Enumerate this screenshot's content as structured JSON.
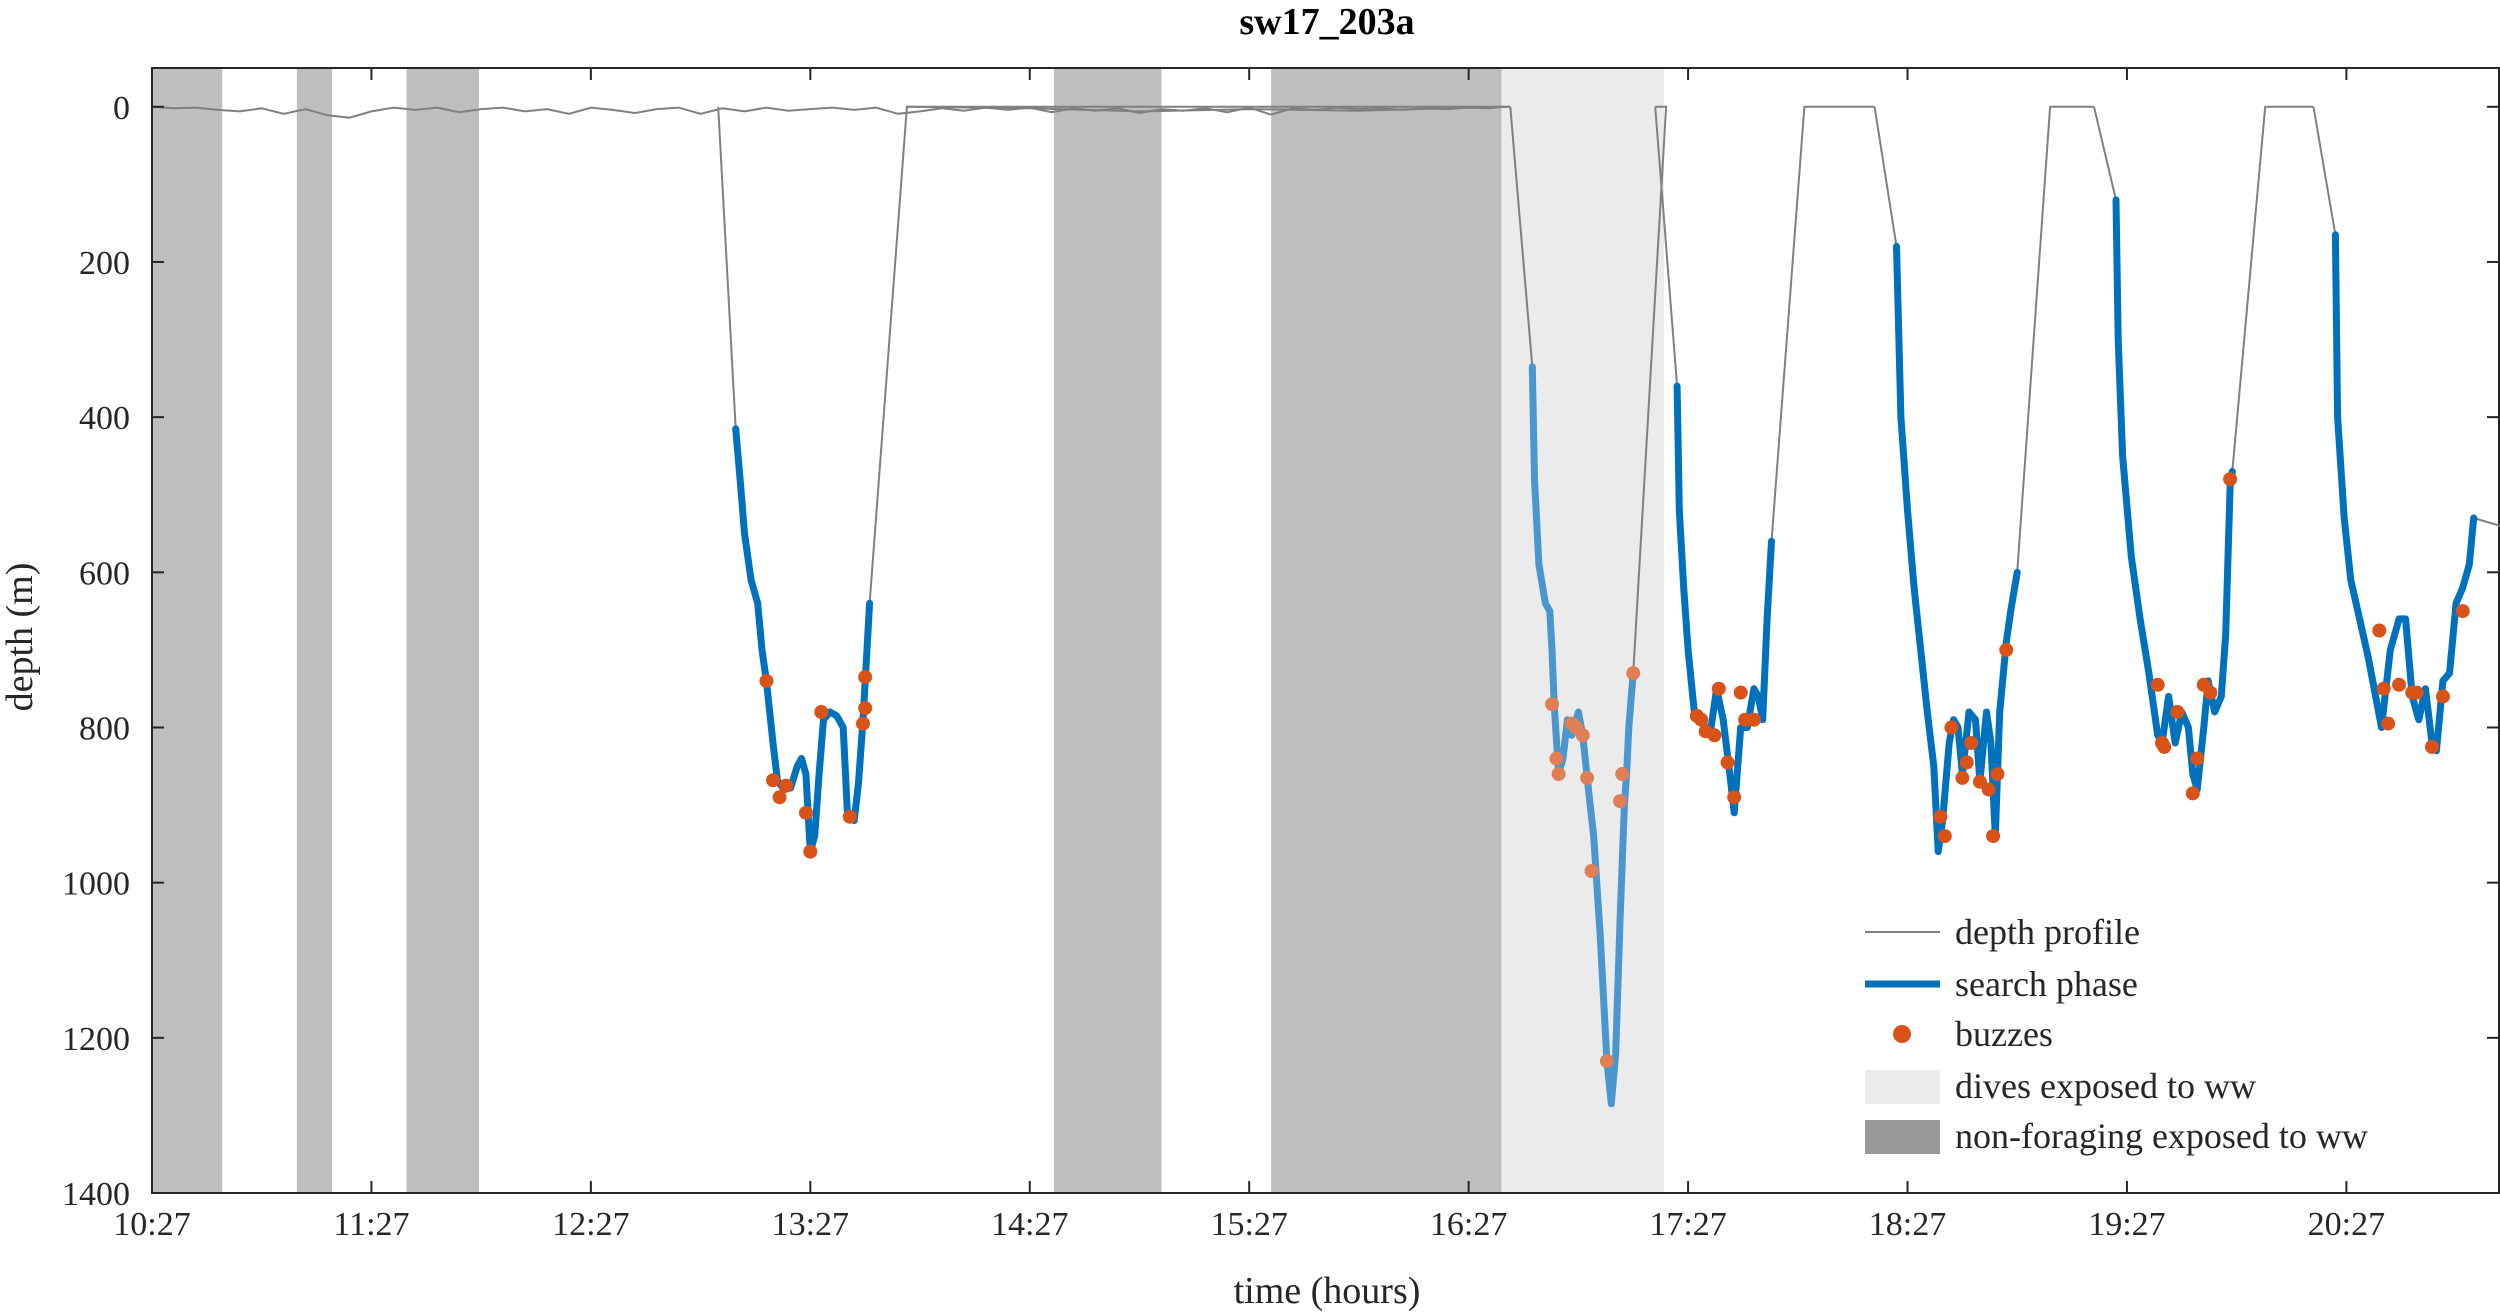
{
  "chart_data": {
    "type": "line",
    "title": "sw17_203a",
    "xlabel": "time (hours)",
    "ylabel": "depth (m)",
    "x_unit": "hours since 10:27",
    "xlim": [
      0,
      10.7
    ],
    "ylim": [
      1400,
      -50
    ],
    "y_reversed": true,
    "xticks": [
      {
        "label": "10:27",
        "value": 0
      },
      {
        "label": "11:27",
        "value": 1
      },
      {
        "label": "12:27",
        "value": 2
      },
      {
        "label": "13:27",
        "value": 3
      },
      {
        "label": "14:27",
        "value": 4
      },
      {
        "label": "15:27",
        "value": 5
      },
      {
        "label": "16:27",
        "value": 6
      },
      {
        "label": "17:27",
        "value": 7
      },
      {
        "label": "18:27",
        "value": 8
      },
      {
        "label": "19:27",
        "value": 9
      },
      {
        "label": "20:27",
        "value": 10
      }
    ],
    "yticks": [
      0,
      200,
      400,
      600,
      800,
      1000,
      1200,
      1400
    ],
    "legend": {
      "position": "bottom-right",
      "entries": [
        {
          "key": "depth",
          "label": "depth profile"
        },
        {
          "key": "search",
          "label": "search phase"
        },
        {
          "key": "buzzes",
          "label": "buzzes"
        },
        {
          "key": "exposed_dives",
          "label": "dives exposed to ww"
        },
        {
          "key": "nonforaging",
          "label": "non-foraging exposed to ww"
        }
      ]
    },
    "colors": {
      "depth": "#808080",
      "search": "#0072BD",
      "search_exposed": "#4A96CF",
      "buzz": "#D95319",
      "buzz_exposed": "#E07F55",
      "exposed_dives": "#EBEBEB",
      "nonforaging": "#BEBEBE",
      "legend_nonforaging": "#999999"
    },
    "shaded_regions": {
      "nonforaging": [
        [
          0,
          0.32
        ],
        [
          0.66,
          0.82
        ],
        [
          1.16,
          1.49
        ],
        [
          4.11,
          4.6
        ],
        [
          5.1,
          6.15
        ]
      ],
      "exposed_dives": [
        [
          6.15,
          6.89
        ]
      ]
    },
    "series": [
      {
        "name": "depth profile",
        "points": [
          [
            0,
            0
          ],
          [
            0.1,
            2
          ],
          [
            0.2,
            1
          ],
          [
            0.3,
            4
          ],
          [
            0.4,
            6
          ],
          [
            0.5,
            2
          ],
          [
            0.6,
            9
          ],
          [
            0.7,
            3
          ],
          [
            0.8,
            11
          ],
          [
            0.9,
            14
          ],
          [
            1.0,
            6
          ],
          [
            1.1,
            1
          ],
          [
            1.2,
            4
          ],
          [
            1.3,
            1
          ],
          [
            1.4,
            7
          ],
          [
            1.5,
            3
          ],
          [
            1.6,
            1
          ],
          [
            1.7,
            6
          ],
          [
            1.8,
            3
          ],
          [
            1.9,
            9
          ],
          [
            2.0,
            1
          ],
          [
            2.1,
            4
          ],
          [
            2.2,
            8
          ],
          [
            2.3,
            3
          ],
          [
            2.4,
            1
          ],
          [
            2.5,
            9
          ],
          [
            2.6,
            2
          ],
          [
            2.7,
            6
          ],
          [
            2.8,
            1
          ],
          [
            2.9,
            5
          ],
          [
            3.0,
            3
          ],
          [
            3.1,
            1
          ],
          [
            3.2,
            4
          ],
          [
            3.3,
            1
          ],
          [
            3.4,
            9
          ],
          [
            3.5,
            6
          ],
          [
            3.6,
            2
          ],
          [
            3.7,
            5
          ],
          [
            3.8,
            1
          ],
          [
            3.9,
            4
          ],
          [
            4.0,
            1
          ],
          [
            4.1,
            7
          ],
          [
            4.2,
            2
          ],
          [
            4.3,
            5
          ],
          [
            4.4,
            2
          ],
          [
            4.5,
            8
          ],
          [
            4.6,
            3
          ],
          [
            4.7,
            5
          ],
          [
            4.8,
            2
          ],
          [
            4.9,
            7
          ],
          [
            5.0,
            1
          ],
          [
            5.1,
            10
          ],
          [
            5.2,
            2
          ],
          [
            5.3,
            4
          ],
          [
            5.4,
            1
          ],
          [
            5.5,
            3
          ],
          [
            5.6,
            2
          ],
          [
            5.7,
            4
          ],
          [
            5.8,
            2
          ],
          [
            5.9,
            3
          ],
          [
            6.0,
            1
          ],
          [
            6.1,
            2
          ],
          [
            6.15,
            0
          ]
        ]
      },
      {
        "name": "search phase",
        "dives": [
          [
            [
              2.66,
              415
            ],
            [
              2.68,
              480
            ],
            [
              2.7,
              550
            ],
            [
              2.73,
              610
            ],
            [
              2.76,
              640
            ],
            [
              2.78,
              700
            ],
            [
              2.8,
              740
            ],
            [
              2.83,
              820
            ],
            [
              2.85,
              868
            ],
            [
              2.88,
              880
            ],
            [
              2.91,
              878
            ],
            [
              2.94,
              850
            ],
            [
              2.96,
              840
            ],
            [
              2.98,
              860
            ],
            [
              3.0,
              960
            ],
            [
              3.02,
              940
            ],
            [
              3.04,
              860
            ],
            [
              3.06,
              790
            ],
            [
              3.09,
              780
            ],
            [
              3.12,
              785
            ],
            [
              3.15,
              800
            ],
            [
              3.17,
              915
            ],
            [
              3.2,
              920
            ],
            [
              3.22,
              870
            ],
            [
              3.24,
              790
            ],
            [
              3.25,
              740
            ],
            [
              3.27,
              640
            ]
          ],
          [
            [
              6.29,
              335
            ],
            [
              6.3,
              480
            ],
            [
              6.32,
              590
            ],
            [
              6.35,
              640
            ],
            [
              6.37,
              650
            ],
            [
              6.38,
              700
            ],
            [
              6.39,
              770
            ],
            [
              6.41,
              860
            ],
            [
              6.43,
              840
            ],
            [
              6.45,
              790
            ],
            [
              6.47,
              810
            ],
            [
              6.5,
              780
            ],
            [
              6.52,
              810
            ],
            [
              6.55,
              890
            ],
            [
              6.57,
              940
            ],
            [
              6.6,
              1070
            ],
            [
              6.63,
              1230
            ],
            [
              6.65,
              1285
            ],
            [
              6.67,
              1220
            ],
            [
              6.69,
              1050
            ],
            [
              6.71,
              900
            ],
            [
              6.72,
              860
            ],
            [
              6.73,
              800
            ],
            [
              6.75,
              730
            ]
          ],
          [
            [
              6.95,
              360
            ],
            [
              6.96,
              520
            ],
            [
              6.98,
              620
            ],
            [
              7.0,
              700
            ],
            [
              7.03,
              785
            ],
            [
              7.06,
              790
            ],
            [
              7.1,
              810
            ],
            [
              7.13,
              750
            ],
            [
              7.16,
              790
            ],
            [
              7.19,
              860
            ],
            [
              7.21,
              910
            ],
            [
              7.24,
              800
            ],
            [
              7.27,
              800
            ],
            [
              7.3,
              750
            ],
            [
              7.32,
              760
            ],
            [
              7.34,
              790
            ],
            [
              7.36,
              660
            ],
            [
              7.38,
              560
            ]
          ],
          [
            [
              7.95,
              180
            ],
            [
              7.97,
              400
            ],
            [
              8.0,
              520
            ],
            [
              8.03,
              620
            ],
            [
              8.06,
              700
            ],
            [
              8.09,
              780
            ],
            [
              8.12,
              850
            ],
            [
              8.14,
              960
            ],
            [
              8.16,
              920
            ],
            [
              8.19,
              820
            ],
            [
              8.21,
              790
            ],
            [
              8.23,
              800
            ],
            [
              8.25,
              860
            ],
            [
              8.28,
              780
            ],
            [
              8.31,
              790
            ],
            [
              8.33,
              870
            ],
            [
              8.36,
              780
            ],
            [
              8.38,
              820
            ],
            [
              8.4,
              940
            ],
            [
              8.42,
              780
            ],
            [
              8.45,
              690
            ],
            [
              8.47,
              650
            ],
            [
              8.5,
              600
            ]
          ],
          [
            [
              8.95,
              120
            ],
            [
              8.96,
              300
            ],
            [
              8.98,
              450
            ],
            [
              9.02,
              580
            ],
            [
              9.06,
              660
            ],
            [
              9.1,
              730
            ],
            [
              9.14,
              810
            ],
            [
              9.16,
              820
            ],
            [
              9.19,
              760
            ],
            [
              9.22,
              820
            ],
            [
              9.25,
              780
            ],
            [
              9.28,
              800
            ],
            [
              9.3,
              860
            ],
            [
              9.32,
              880
            ],
            [
              9.35,
              800
            ],
            [
              9.37,
              740
            ],
            [
              9.4,
              780
            ],
            [
              9.43,
              760
            ],
            [
              9.45,
              680
            ],
            [
              9.47,
              490
            ],
            [
              9.48,
              470
            ]
          ],
          [
            [
              9.95,
              165
            ],
            [
              9.96,
              400
            ],
            [
              9.99,
              530
            ],
            [
              10.02,
              610
            ],
            [
              10.06,
              660
            ],
            [
              10.1,
              710
            ],
            [
              10.14,
              770
            ],
            [
              10.16,
              800
            ],
            [
              10.2,
              700
            ],
            [
              10.24,
              660
            ],
            [
              10.27,
              660
            ],
            [
              10.3,
              760
            ],
            [
              10.33,
              790
            ],
            [
              10.36,
              750
            ],
            [
              10.39,
              820
            ],
            [
              10.41,
              830
            ],
            [
              10.44,
              740
            ],
            [
              10.47,
              730
            ],
            [
              10.5,
              640
            ],
            [
              10.53,
              620
            ],
            [
              10.56,
              590
            ],
            [
              10.58,
              530
            ]
          ]
        ],
        "exposed_dive_index": 1
      },
      {
        "name": "buzzes",
        "points": [
          [
            2.8,
            740
          ],
          [
            2.83,
            868
          ],
          [
            2.86,
            890
          ],
          [
            2.89,
            875
          ],
          [
            2.98,
            910
          ],
          [
            3.0,
            960
          ],
          [
            3.05,
            780
          ],
          [
            3.18,
            915
          ],
          [
            3.24,
            795
          ],
          [
            3.25,
            775
          ],
          [
            3.25,
            735
          ],
          [
            6.38,
            770
          ],
          [
            6.4,
            840
          ],
          [
            6.41,
            860
          ],
          [
            6.47,
            795
          ],
          [
            6.49,
            800
          ],
          [
            6.52,
            810
          ],
          [
            6.54,
            865
          ],
          [
            6.56,
            985
          ],
          [
            6.63,
            1230
          ],
          [
            6.69,
            895
          ],
          [
            6.7,
            860
          ],
          [
            6.75,
            730
          ],
          [
            7.04,
            785
          ],
          [
            7.06,
            790
          ],
          [
            7.08,
            805
          ],
          [
            7.12,
            810
          ],
          [
            7.14,
            750
          ],
          [
            7.18,
            845
          ],
          [
            7.21,
            890
          ],
          [
            7.24,
            755
          ],
          [
            7.26,
            790
          ],
          [
            7.3,
            790
          ],
          [
            8.15,
            915
          ],
          [
            8.17,
            940
          ],
          [
            8.2,
            800
          ],
          [
            8.25,
            865
          ],
          [
            8.27,
            845
          ],
          [
            8.29,
            820
          ],
          [
            8.33,
            870
          ],
          [
            8.37,
            880
          ],
          [
            8.39,
            940
          ],
          [
            8.41,
            860
          ],
          [
            8.45,
            700
          ],
          [
            9.14,
            745
          ],
          [
            9.16,
            820
          ],
          [
            9.17,
            825
          ],
          [
            9.23,
            780
          ],
          [
            9.3,
            885
          ],
          [
            9.32,
            840
          ],
          [
            9.35,
            745
          ],
          [
            9.38,
            755
          ],
          [
            9.47,
            480
          ],
          [
            10.15,
            675
          ],
          [
            10.17,
            750
          ],
          [
            10.19,
            795
          ],
          [
            10.24,
            745
          ],
          [
            10.3,
            755
          ],
          [
            10.32,
            755
          ],
          [
            10.39,
            825
          ],
          [
            10.44,
            760
          ],
          [
            10.53,
            650
          ]
        ]
      }
    ]
  }
}
